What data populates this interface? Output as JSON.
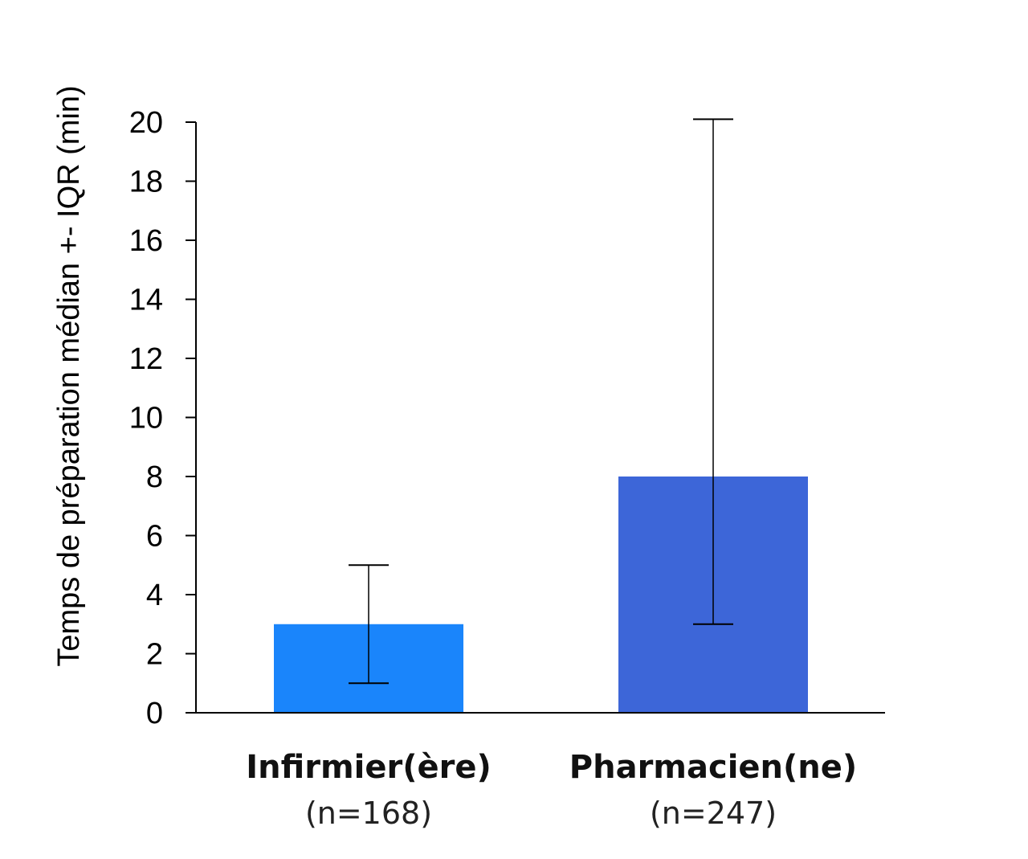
{
  "chart_data": {
    "type": "bar",
    "ylabel": "Temps de préparation médian +- IQR (min)",
    "xlabel": "",
    "ylim": [
      0,
      20
    ],
    "yticks": [
      0,
      2,
      4,
      6,
      8,
      10,
      12,
      14,
      16,
      18,
      20
    ],
    "grid": false,
    "categories": [
      {
        "label": "Infirmier(ère)",
        "sublabel": "(n=168)"
      },
      {
        "label": "Pharmacien(ne)",
        "sublabel": "(n=247)"
      }
    ],
    "values": [
      3,
      8
    ],
    "error_low": [
      1,
      3
    ],
    "error_high": [
      5,
      20.1
    ],
    "colors": [
      "#1a85fb",
      "#3d66d8"
    ]
  }
}
